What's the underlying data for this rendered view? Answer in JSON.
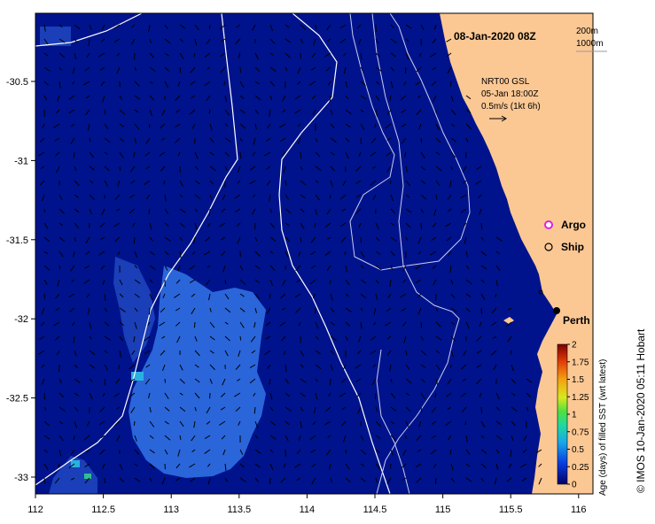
{
  "map": {
    "title": "08-Jan-2020 08Z",
    "depth_legend": {
      "d1": "200m",
      "d2": "1000m"
    },
    "product": "NRT00 GSL",
    "product_time": "05-Jan 18:00Z",
    "scale_label": "0.5m/s (1kt 6h)",
    "legend": {
      "argo": "Argo",
      "ship": "Ship"
    },
    "city": "Perth",
    "credit": "© IMOS 10-Jan-2020 05:11 Hobart",
    "x_ticks": [
      "112",
      "112.5",
      "113",
      "113.5",
      "114",
      "114.5",
      "115",
      "115.5",
      "116"
    ],
    "y_ticks": [
      "-30.5",
      "-31",
      "-31.5",
      "-32",
      "-32.5",
      "-33"
    ],
    "colors": {
      "ocean": "#00138c",
      "land": "#fbc894",
      "warm_patch": "#2a66da",
      "argo": "#e020e0"
    }
  },
  "colorbar": {
    "label": "Age (days) of filled SST (wrt latest)",
    "ticks": [
      "2",
      "1.75",
      "1.5",
      "1.25",
      "1",
      "0.75",
      "0.5",
      "0.25",
      "0"
    ]
  }
}
